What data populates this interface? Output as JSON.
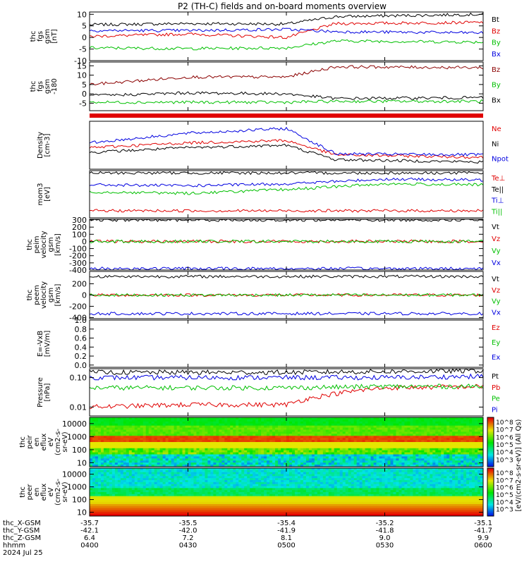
{
  "title": "P2 (TH-C) fields and on-board moments overview",
  "date": "2024 Jul 25",
  "time_ticks": [
    "0400",
    "0430",
    "0500",
    "0530",
    "0600"
  ],
  "orbit_rows": [
    {
      "label": "thc_X-GSM",
      "values": [
        "-35.7",
        "-35.5",
        "-35.4",
        "-35.2",
        "-35.1"
      ]
    },
    {
      "label": "thc_Y-GSM",
      "values": [
        "-42.1",
        "-42.0",
        "-41.9",
        "-41.8",
        "-41.7"
      ]
    },
    {
      "label": "thc_Z-GSM",
      "values": [
        "6.4",
        "7.2",
        "8.1",
        "9.0",
        "9.9"
      ]
    },
    {
      "label": "hhmm",
      "values": [
        "0400",
        "0430",
        "0500",
        "0530",
        "0600"
      ]
    }
  ],
  "colorbar": {
    "label": "[eV/(cm2-s-sr-eV)] (All Qs)",
    "ticks": [
      "10^8",
      "10^7",
      "10^6",
      "10^5",
      "10^4",
      "10^3"
    ],
    "ticks2": [
      "10^8",
      "10^7",
      "10^6",
      "10^5",
      "10^4",
      "10^3"
    ]
  },
  "chart_data": [
    {
      "type": "line",
      "id": "fgs",
      "ylabel_lines": [
        "thc",
        "fgs",
        "gsm",
        "[nT]"
      ],
      "ylim": [
        -10,
        11
      ],
      "yticks": [
        "10",
        "5",
        "0",
        "-5",
        "-10"
      ],
      "x": [
        "0400",
        "0430",
        "0500",
        "0515",
        "0600"
      ],
      "series": [
        {
          "name": "Bt",
          "color": "#000000",
          "values": [
            5.5,
            6.0,
            5.8,
            9.0,
            10.0
          ]
        },
        {
          "name": "Bz",
          "color": "#e00000",
          "values": [
            0.5,
            1.5,
            0.0,
            6.0,
            6.5
          ]
        },
        {
          "name": "By",
          "color": "#00c000",
          "values": [
            -4.5,
            -4.8,
            -4.5,
            -1.5,
            -2.0
          ]
        },
        {
          "name": "Bx",
          "color": "#0000e0",
          "values": [
            3.0,
            3.0,
            3.5,
            2.5,
            2.0
          ]
        }
      ]
    },
    {
      "type": "line",
      "id": "fgs-gse",
      "ylabel_lines": [
        "thc",
        "fgs",
        "gsm",
        "-180"
      ],
      "ylim": [
        -9,
        17
      ],
      "yticks": [
        "15",
        "10",
        "5",
        "0",
        "-5"
      ],
      "x": [
        "0400",
        "0430",
        "0500",
        "0515",
        "0600"
      ],
      "series": [
        {
          "name": "Bz",
          "color": "#8b0000",
          "values": [
            5.0,
            9.0,
            9.0,
            14.5,
            14.0
          ]
        },
        {
          "name": "By",
          "color": "#00c000",
          "values": [
            -4.5,
            -4.5,
            -4.5,
            -4.0,
            -4.0
          ]
        },
        {
          "name": "Bx",
          "color": "#000000",
          "values": [
            -1.0,
            0.5,
            0.0,
            -2.5,
            -2.0
          ]
        }
      ]
    },
    {
      "type": "line",
      "id": "density",
      "ylabel_lines": [
        "Density",
        "[cm-3]"
      ],
      "ylim": [
        0,
        1
      ],
      "yticks": [],
      "x": [
        "0400",
        "0430",
        "0500",
        "0515",
        "0600"
      ],
      "series": [
        {
          "name": "Ne",
          "color": "#e00000",
          "values": [
            0.45,
            0.55,
            0.6,
            0.3,
            0.25
          ]
        },
        {
          "name": "Ni",
          "color": "#000000",
          "values": [
            0.35,
            0.45,
            0.5,
            0.2,
            0.15
          ]
        },
        {
          "name": "Npot",
          "color": "#0000e0",
          "values": [
            0.55,
            0.75,
            0.85,
            0.32,
            0.3
          ]
        }
      ]
    },
    {
      "type": "line",
      "id": "temperature",
      "ylabel_lines": [
        "mom3",
        "[eV]"
      ],
      "ylim": [
        0,
        1
      ],
      "yticks": [],
      "x": [
        "0400",
        "0430",
        "0500",
        "0530",
        "0600"
      ],
      "series": [
        {
          "name": "Te⊥",
          "color": "#e00000",
          "values": [
            0.15,
            0.15,
            0.15,
            0.15,
            0.15
          ]
        },
        {
          "name": "Te||",
          "color": "#000000",
          "values": [
            0.95,
            0.95,
            0.95,
            0.95,
            0.95
          ]
        },
        {
          "name": "Ti⊥",
          "color": "#0000e0",
          "values": [
            0.7,
            0.68,
            0.72,
            0.82,
            0.8
          ]
        },
        {
          "name": "Ti||",
          "color": "#00c000",
          "values": [
            0.55,
            0.52,
            0.6,
            0.72,
            0.7
          ]
        }
      ]
    },
    {
      "type": "line",
      "id": "peim-velocity",
      "ylabel_lines": [
        "thc",
        "peim",
        "velocity",
        "gsm",
        "[km/s]"
      ],
      "ylim": [
        -400,
        310
      ],
      "yticks": [
        "300",
        "200",
        "100",
        "0",
        "-100",
        "-200",
        "-300",
        "-400"
      ],
      "x": [
        "0400",
        "0430",
        "0500",
        "0530",
        "0600"
      ],
      "series": [
        {
          "name": "Vt",
          "color": "#000000",
          "values": [
            300,
            300,
            300,
            300,
            300
          ]
        },
        {
          "name": "Vz",
          "color": "#e00000",
          "values": [
            0,
            0,
            0,
            0,
            0
          ]
        },
        {
          "name": "Vy",
          "color": "#00c000",
          "values": [
            0,
            0,
            0,
            0,
            0
          ]
        },
        {
          "name": "Vx",
          "color": "#0000e0",
          "values": [
            -380,
            -380,
            -380,
            -380,
            -380
          ]
        }
      ]
    },
    {
      "type": "line",
      "id": "peem-velocity",
      "ylabel_lines": [
        "thc",
        "peem",
        "velocity",
        "gsm",
        "[km/s]"
      ],
      "ylim": [
        -420,
        420
      ],
      "yticks": [
        "-400",
        "-200",
        "0",
        "200"
      ],
      "x": [
        "0400",
        "0430",
        "0500",
        "0530",
        "0600"
      ],
      "series": [
        {
          "name": "Vt",
          "color": "#000000",
          "values": [
            330,
            330,
            330,
            330,
            330
          ]
        },
        {
          "name": "Vz",
          "color": "#e00000",
          "values": [
            0,
            0,
            0,
            0,
            0
          ]
        },
        {
          "name": "Vy",
          "color": "#00c000",
          "values": [
            0,
            0,
            0,
            0,
            0
          ]
        },
        {
          "name": "Vx",
          "color": "#0000e0",
          "values": [
            -330,
            -330,
            -330,
            -330,
            -330
          ]
        }
      ]
    },
    {
      "type": "line",
      "id": "efield",
      "ylabel_lines": [
        "E=-VxB",
        "[mV/m]"
      ],
      "ylim": [
        -0.05,
        1.0
      ],
      "yticks": [
        "1.0",
        "0.8",
        "0.6",
        "0.4",
        "0.2",
        "0.0"
      ],
      "x": [],
      "series": [
        {
          "name": "Ez",
          "color": "#e00000",
          "values": []
        },
        {
          "name": "Ey",
          "color": "#00c000",
          "values": []
        },
        {
          "name": "Ex",
          "color": "#0000e0",
          "values": []
        }
      ]
    },
    {
      "type": "line",
      "id": "pressure",
      "ylabel_lines": [
        "Pressure",
        "[nPa]"
      ],
      "ylim": [
        0.005,
        0.2
      ],
      "log": true,
      "yticks": [
        "0.10",
        "0.01"
      ],
      "x": [
        "0400",
        "0430",
        "0500",
        "0530",
        "0600"
      ],
      "series": [
        {
          "name": "Pt",
          "color": "#000000",
          "values": [
            0.15,
            0.15,
            0.15,
            0.16,
            0.17
          ]
        },
        {
          "name": "Pb",
          "color": "#e00000",
          "values": [
            0.01,
            0.012,
            0.012,
            0.045,
            0.05
          ]
        },
        {
          "name": "Pe",
          "color": "#00c000",
          "values": [
            0.045,
            0.045,
            0.045,
            0.05,
            0.05
          ]
        },
        {
          "name": "Pi",
          "color": "#0000e0",
          "values": [
            0.1,
            0.1,
            0.1,
            0.1,
            0.11
          ]
        }
      ]
    },
    {
      "type": "heatmap",
      "id": "peir-spectrogram",
      "ylabel_lines": [
        "thc",
        "peir",
        "en",
        "eflux",
        "eV",
        "(cm2-s-",
        "sr-eV)"
      ],
      "ylim": [
        5,
        30000
      ],
      "log": true,
      "yticks": [
        "10000",
        "1000",
        "100",
        "10"
      ],
      "x": [
        "0400",
        "0430",
        "0500",
        "0530",
        "0600"
      ]
    },
    {
      "type": "heatmap",
      "id": "peer-spectrogram",
      "ylabel_lines": [
        "thc",
        "peer",
        "en",
        "eflux",
        "eV",
        "(cm2-s-",
        "sr-eV)"
      ],
      "ylim": [
        5,
        30000
      ],
      "log": true,
      "yticks": [
        "10000",
        "1000",
        "100",
        "10"
      ],
      "x": [
        "0400",
        "0430",
        "0500",
        "0530",
        "0600"
      ]
    }
  ]
}
